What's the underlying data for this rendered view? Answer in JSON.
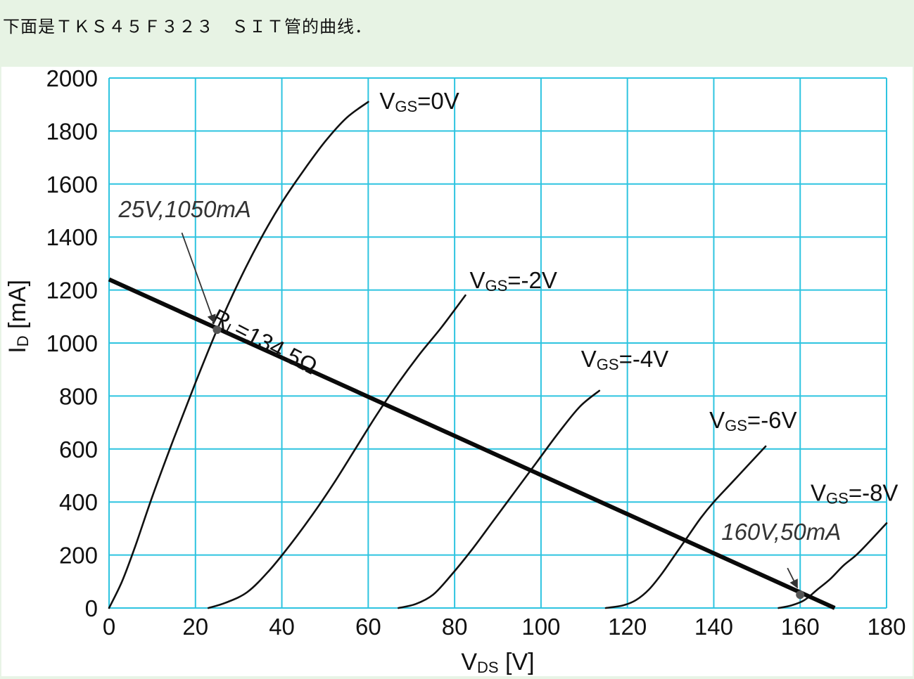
{
  "header": {
    "text": "下面是ＴＫＳ４５Ｆ３２３　ＳＩＴ管的曲线．"
  },
  "chart_data": {
    "type": "line",
    "title": "",
    "xlabel": {
      "main": "V",
      "sub": "DS",
      "unit": " [V]"
    },
    "ylabel": {
      "main": "I",
      "sub": "D",
      "unit": " [mA]"
    },
    "xlim": [
      0,
      180
    ],
    "ylim": [
      0,
      2000
    ],
    "x_ticks": [
      "0",
      "20",
      "40",
      "60",
      "80",
      "100",
      "120",
      "140",
      "160",
      "180"
    ],
    "y_ticks": [
      "0",
      "200",
      "400",
      "600",
      "800",
      "1000",
      "1200",
      "1400",
      "1600",
      "1800",
      "2000"
    ],
    "grid": true,
    "grid_color": "#2ec4e0",
    "series": [
      {
        "name": "VGS=0V",
        "label": {
          "main": "V",
          "sub": "GS",
          "rest": "=0V"
        },
        "x": [
          0,
          3,
          6,
          10,
          15,
          20,
          25,
          30,
          35,
          40,
          45,
          50,
          55,
          60
        ],
        "y": [
          0,
          100,
          230,
          420,
          640,
          850,
          1050,
          1230,
          1390,
          1530,
          1650,
          1760,
          1850,
          1910
        ]
      },
      {
        "name": "VGS=-2V",
        "label": {
          "main": "V",
          "sub": "GS",
          "rest": "=-2V"
        },
        "x": [
          23,
          27,
          32,
          37,
          42,
          47,
          52,
          57,
          62,
          67,
          72,
          77,
          82.5
        ],
        "y": [
          0,
          20,
          60,
          140,
          240,
          350,
          470,
          600,
          730,
          850,
          960,
          1060,
          1180
        ]
      },
      {
        "name": "VGS=-4V",
        "label": {
          "main": "V",
          "sub": "GS",
          "rest": "=-4V"
        },
        "x": [
          67,
          71,
          75,
          79,
          84,
          89,
          94,
          99,
          104,
          109,
          113.5
        ],
        "y": [
          0,
          15,
          50,
          120,
          220,
          330,
          440,
          550,
          660,
          760,
          820
        ]
      },
      {
        "name": "VGS=-6V",
        "label": {
          "main": "V",
          "sub": "GS",
          "rest": "=-6V"
        },
        "x": [
          115,
          119,
          122,
          125,
          128,
          131,
          134,
          137,
          140,
          144,
          148,
          152
        ],
        "y": [
          0,
          10,
          30,
          70,
          130,
          200,
          270,
          340,
          400,
          470,
          540,
          610
        ]
      },
      {
        "name": "VGS=-8V",
        "label": {
          "main": "V",
          "sub": "GS",
          "rest": "=-8V"
        },
        "x": [
          155,
          158,
          161,
          164,
          167,
          170,
          173,
          176,
          180
        ],
        "y": [
          0,
          10,
          30,
          70,
          110,
          160,
          200,
          250,
          320
        ]
      }
    ],
    "load_line": {
      "label": {
        "main": "R",
        "sub": "L",
        "rest": "=134.5Ω"
      },
      "x": [
        0,
        168
      ],
      "y": [
        1240,
        0
      ]
    },
    "annotations": [
      {
        "text": "25V,1050mA",
        "x": 25,
        "y": 1050
      },
      {
        "text": "160V,50mA",
        "x": 160,
        "y": 50
      }
    ]
  }
}
